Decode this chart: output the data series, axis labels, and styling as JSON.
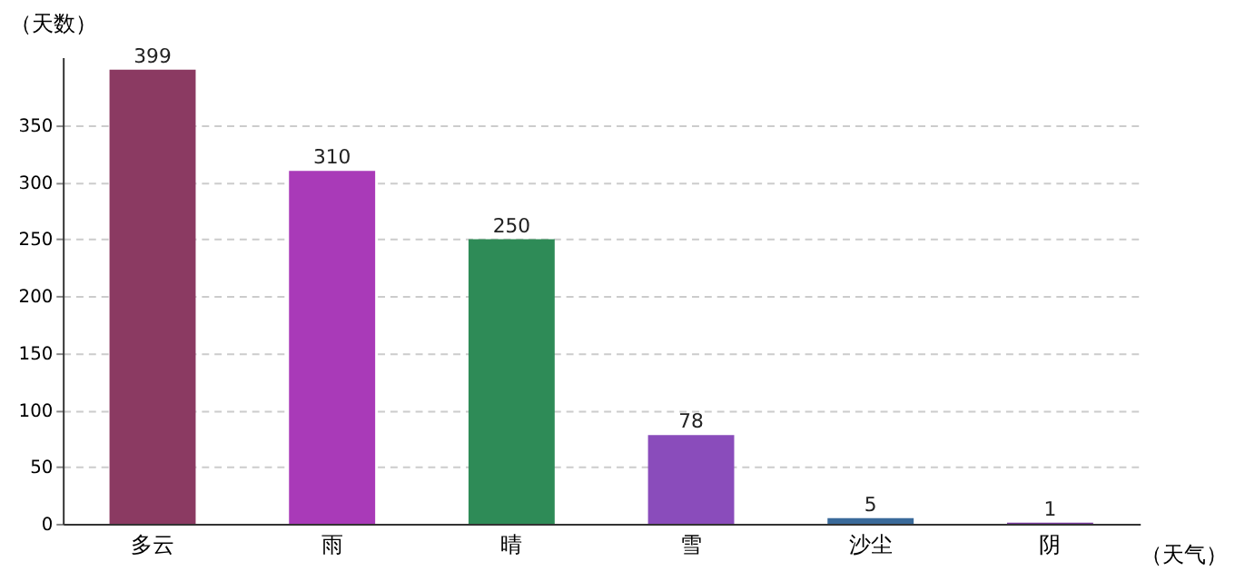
{
  "chart_data": {
    "type": "bar",
    "xlabel": "（天气）",
    "ylabel": "（天数）",
    "categories": [
      "多云",
      "雨",
      "晴",
      "雪",
      "沙尘",
      "阴"
    ],
    "values": [
      399,
      310,
      250,
      78,
      5,
      1
    ],
    "colors": [
      "#8b3a62",
      "#a93ab8",
      "#2e8b57",
      "#8a4cbb",
      "#3a6a9a",
      "#7a3aa0"
    ],
    "ylim": [
      0,
      410
    ],
    "yticks": [
      0,
      50,
      100,
      150,
      200,
      250,
      300,
      350
    ],
    "grid": "y",
    "data_labels": true
  }
}
